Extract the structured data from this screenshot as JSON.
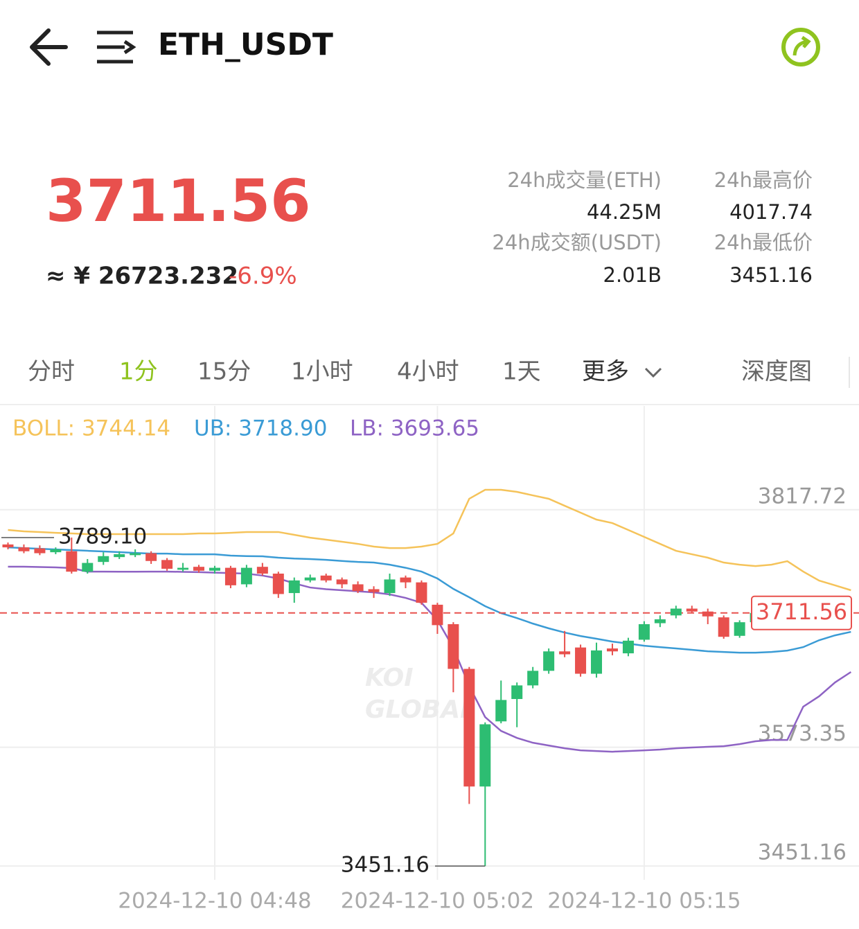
{
  "header": {
    "title": "ETH_USDT"
  },
  "ticker": {
    "price": "3711.56",
    "cny": "≈ ¥ 26723.232",
    "change": "-6.9%",
    "stats": [
      {
        "label": "24h成交量(ETH)",
        "value": "44.25M"
      },
      {
        "label": "24h最高价",
        "value": "4017.74"
      },
      {
        "label": "24h成交额(USDT)",
        "value": "2.01B"
      },
      {
        "label": "24h最低价",
        "value": "3451.16"
      }
    ]
  },
  "tabs": [
    "分时",
    "1分",
    "15分",
    "1小时",
    "4小时",
    "1天",
    "更多",
    "深度图"
  ],
  "chart_data": {
    "type": "candlestick",
    "indicators": [
      {
        "text": "BOLL: 3744.14",
        "color": "#f5c35a"
      },
      {
        "text": "UB: 3718.90",
        "color": "#3a9bd5"
      },
      {
        "text": "LB: 3693.65",
        "color": "#8e63c4"
      }
    ],
    "watermark": [
      "KOI",
      "GLOBAL"
    ],
    "up_color": "#2dbd72",
    "down_color": "#e8504d",
    "categories": [
      null,
      null,
      null,
      null,
      null,
      null,
      null,
      null,
      null,
      null,
      null,
      null,
      null,
      "2024-12-10 04:48",
      null,
      null,
      null,
      null,
      null,
      null,
      null,
      null,
      null,
      null,
      null,
      null,
      null,
      "2024-12-10 05:02",
      null,
      null,
      null,
      null,
      null,
      null,
      null,
      null,
      null,
      null,
      null,
      null,
      "2024-12-10 05:15",
      null,
      null,
      null,
      null,
      null,
      null,
      null,
      null,
      null,
      null,
      null,
      null,
      null
    ],
    "open": [
      3782,
      3779,
      3778,
      3774,
      3775,
      3754,
      3764,
      3769,
      3771,
      3773,
      3766,
      3756,
      3759,
      3755,
      3758,
      3741,
      3759,
      3752,
      3732,
      3745,
      3750,
      3746,
      3741,
      3736,
      3732,
      3748,
      3743,
      3720,
      3700,
      3654,
      3533,
      3600,
      3623,
      3637,
      3652,
      3672,
      3676,
      3649,
      3675,
      3670,
      3684,
      3701,
      3709,
      3716,
      3713,
      3707,
      3688,
      3702,
      null,
      null,
      null,
      null,
      null,
      null
    ],
    "high": [
      3784,
      3782,
      3781,
      3779,
      3789.1,
      3767,
      3774,
      3775,
      3777,
      3775,
      3768,
      3763,
      3761,
      3760,
      3760,
      3761,
      3763,
      3754,
      3748,
      3751,
      3752,
      3748,
      3744,
      3739,
      3752,
      3750,
      3745,
      3722,
      3702,
      3656,
      3599,
      3642,
      3640,
      3656,
      3675,
      3693,
      3679,
      3681,
      3680,
      3686,
      3703,
      3709,
      3719,
      3719,
      3716,
      3709,
      3704,
      3713,
      null,
      null,
      null,
      null,
      null,
      null
    ],
    "low": [
      3777,
      3773,
      3771,
      3772,
      3752,
      3752,
      3761,
      3767,
      3769,
      3762,
      3755,
      3754,
      3753,
      3752,
      3737,
      3738,
      3750,
      3727,
      3722,
      3743,
      3743,
      3737,
      3732,
      3727,
      3729,
      3737,
      3720,
      3690,
      3630,
      3515,
      3451.16,
      3598,
      3594,
      3634,
      3649,
      3666,
      3646,
      3645,
      3668,
      3667,
      3682,
      3697,
      3706,
      3711,
      3700,
      3685,
      3686,
      3701,
      null,
      null,
      null,
      null,
      null,
      null
    ],
    "close": [
      3779,
      3775,
      3773,
      3777,
      3754,
      3763,
      3770,
      3772,
      3773,
      3765,
      3757,
      3758,
      3755,
      3758,
      3740,
      3758,
      3752,
      3731,
      3745,
      3748,
      3745,
      3741,
      3734,
      3733,
      3746,
      3743,
      3722,
      3699,
      3654,
      3533,
      3597,
      3622,
      3637,
      3652,
      3672,
      3669,
      3649,
      3673,
      3672,
      3683,
      3700,
      3705,
      3716,
      3713,
      3708,
      3687,
      3702,
      3711.56,
      null,
      null,
      null,
      null,
      null,
      null
    ],
    "series": [
      {
        "color": "#f5c35a",
        "values": [
          3796.9,
          3795.5,
          3794.8,
          3794.0,
          3793.3,
          3792.6,
          3792.6,
          3792.6,
          3792.6,
          3792.6,
          3792.6,
          3792.6,
          3793.3,
          3793.3,
          3794.0,
          3794.8,
          3794.8,
          3794.8,
          3791.9,
          3789.0,
          3786.9,
          3784.8,
          3782.6,
          3779.8,
          3778.3,
          3778.3,
          3779.8,
          3782.6,
          3793.3,
          3829.0,
          3838.2,
          3838.2,
          3836.1,
          3832.5,
          3829.0,
          3821.8,
          3814.7,
          3807.6,
          3804.0,
          3796.9,
          3789.8,
          3782.6,
          3775.5,
          3771.9,
          3768.4,
          3763.4,
          3761.2,
          3759.8,
          3761.2,
          3764.8,
          3754.1,
          3744.8,
          3739.9,
          3734.9
        ]
      },
      {
        "color": "#3a9bd5",
        "values": [
          3779.0,
          3778.3,
          3777.6,
          3776.9,
          3776.2,
          3775.5,
          3774.8,
          3774.1,
          3773.3,
          3772.6,
          3772.6,
          3771.9,
          3771.9,
          3771.9,
          3770.5,
          3770.0,
          3769.8,
          3768.4,
          3767.5,
          3767.0,
          3766.2,
          3765.0,
          3764.0,
          3763.4,
          3761.2,
          3758.0,
          3754.1,
          3747.0,
          3736.3,
          3727.7,
          3718.5,
          3711.3,
          3706.3,
          3700.6,
          3695.7,
          3691.4,
          3687.8,
          3685.0,
          3682.1,
          3680.0,
          3677.8,
          3676.4,
          3675.0,
          3673.6,
          3672.1,
          3671.4,
          3670.7,
          3670.7,
          3671.4,
          3672.8,
          3676.4,
          3683.5,
          3688.5,
          3692.1
        ]
      },
      {
        "color": "#8e63c4",
        "values": [
          3759.1,
          3759.1,
          3758.8,
          3758.4,
          3757.7,
          3754.1,
          3754.1,
          3754.0,
          3754.0,
          3754.1,
          3754.1,
          3753.8,
          3753.5,
          3753.0,
          3752.5,
          3752.0,
          3750.0,
          3747.0,
          3742.0,
          3737.7,
          3736.0,
          3734.9,
          3733.8,
          3732.7,
          3730.6,
          3727.0,
          3722.0,
          3704.2,
          3675.7,
          3636.5,
          3604.4,
          3590.2,
          3583.0,
          3578.0,
          3575.2,
          3572.3,
          3570.2,
          3569.5,
          3568.8,
          3569.5,
          3570.2,
          3571.0,
          3572.3,
          3573.1,
          3573.8,
          3574.5,
          3576.6,
          3579.5,
          3580.9,
          3580.9,
          3615.1,
          3625.8,
          3640.1,
          3650.8
        ]
      }
    ],
    "ylim": [
      3437,
      3914.5
    ],
    "yticks": [
      3817.72,
      3573.35,
      3451.16
    ],
    "last_price": 3711.56,
    "high_marker": {
      "value": 3789.1,
      "label": "3789.10"
    },
    "low_marker": 3451.16,
    "grid": true
  }
}
